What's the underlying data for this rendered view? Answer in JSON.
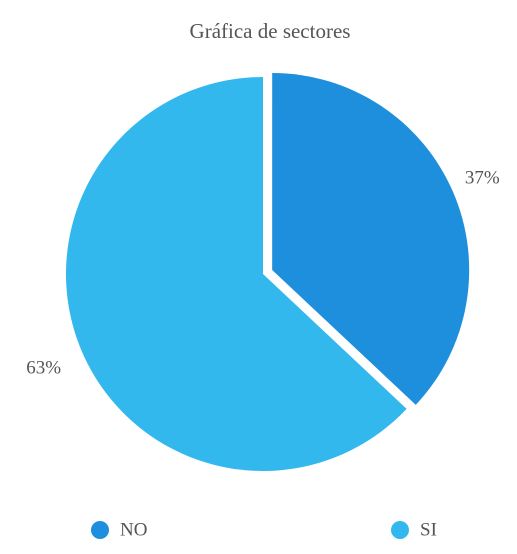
{
  "chart_data": {
    "type": "pie",
    "title": "Gráfica de sectores",
    "categories": [
      "NO",
      "SI"
    ],
    "values": [
      37,
      63
    ],
    "value_labels": [
      "37%",
      "63%"
    ],
    "colors": [
      "#1e8fdc",
      "#33b8ee"
    ]
  }
}
